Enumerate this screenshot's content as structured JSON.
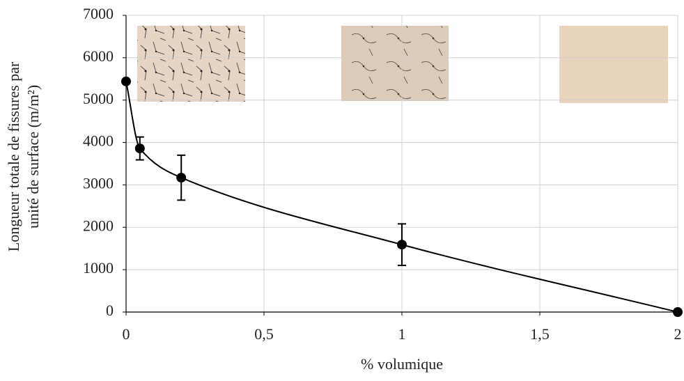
{
  "chart_data": {
    "type": "line",
    "x_label": "% volumique",
    "y_label": [
      "Longueur totale de fissures par",
      "unité de surface (m/m²)"
    ],
    "series": [
      {
        "color": "#000000",
        "x": [
          0,
          0.05,
          0.2,
          1,
          2
        ],
        "values": [
          5440,
          3860,
          3170,
          1590,
          0
        ],
        "errors": [
          null,
          270,
          530,
          490,
          null
        ]
      }
    ],
    "xlim": [
      0,
      2
    ],
    "xticks": [
      0,
      {
        "value": 0.5,
        "label": "0,5"
      },
      1,
      {
        "value": 1.5,
        "label": "1,5"
      },
      2
    ],
    "ylim": [
      0,
      7000
    ],
    "yticks": [
      0,
      1000,
      2000,
      3000,
      4000,
      5000,
      6000,
      7000
    ],
    "grid": true
  }
}
